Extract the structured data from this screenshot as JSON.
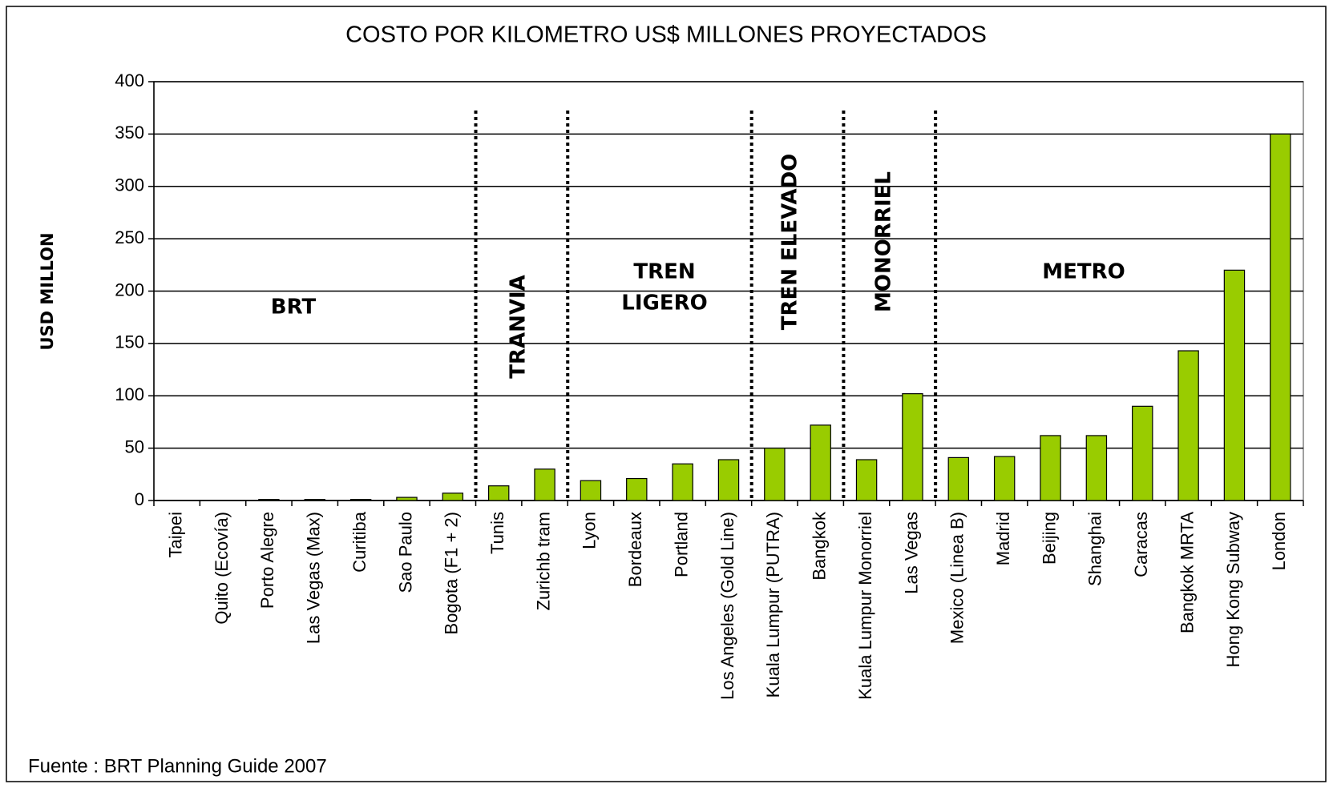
{
  "chart_data": {
    "type": "bar",
    "title": "COSTO POR KILOMETRO US$ MILLONES PROYECTADOS",
    "y_label": "USD MILLON",
    "source": "Fuente : BRT Planning Guide 2007",
    "categories": [
      "Taipei",
      "Quito (Ecovía)",
      "Porto Alegre",
      "Las Vegas (Max)",
      "Curitiba",
      "Sao Paulo",
      "Bogota (F1 + 2)",
      "Tunis",
      "Zurichb tram",
      "Lyon",
      "Bordeaux",
      "Portland",
      "Los Angeles (Gold Line)",
      "Kuala Lumpur (PUTRA)",
      "Bangkok",
      "Kuala Lumpur Monorriel",
      "Las Vegas",
      "Mexico (Linea B)",
      "Madrid",
      "Beijing",
      "Shanghai",
      "Caracas",
      "Bangkok MRTA",
      "Hong Kong Subway",
      "London"
    ],
    "values": [
      0,
      0,
      1,
      1,
      1,
      3,
      7,
      14,
      30,
      19,
      21,
      35,
      39,
      50,
      72,
      39,
      102,
      41,
      42,
      62,
      62,
      90,
      143,
      220,
      350
    ],
    "color": "#99cc00",
    "ylim": [
      0,
      400
    ],
    "yticks": [
      0,
      50,
      100,
      150,
      200,
      250,
      300,
      350,
      400
    ],
    "grid": true,
    "annotations": [
      "BRT",
      "TRANVIA",
      "TREN",
      "LIGERO",
      "TREN ELEVADO",
      "MONORRIEL",
      "METRO"
    ]
  }
}
